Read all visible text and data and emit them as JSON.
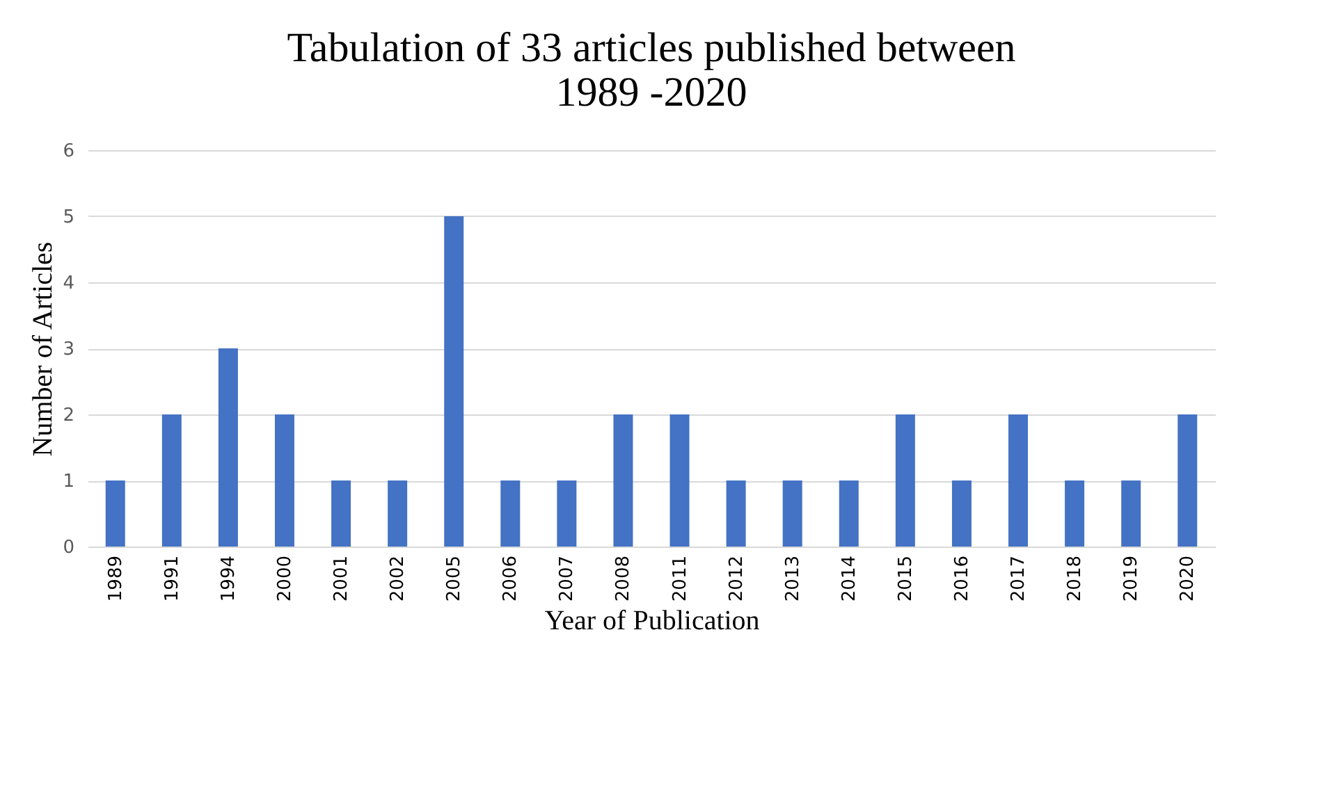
{
  "chart_data": {
    "type": "bar",
    "title": "Tabulation of 33 articles published between 1989 -2020",
    "xlabel": "Year of Publication",
    "ylabel": "Number of Articles",
    "categories": [
      "1989",
      "1991",
      "1994",
      "2000",
      "2001",
      "2002",
      "2005",
      "2006",
      "2007",
      "2008",
      "2011",
      "2012",
      "2013",
      "2014",
      "2015",
      "2016",
      "2017",
      "2018",
      "2019",
      "2020"
    ],
    "values": [
      1,
      2,
      3,
      2,
      1,
      1,
      5,
      1,
      1,
      2,
      2,
      1,
      1,
      1,
      2,
      1,
      2,
      1,
      1,
      2
    ],
    "color": "#4472c4",
    "ylim": [
      0,
      6
    ],
    "yticks": [
      0,
      1,
      2,
      3,
      4,
      5,
      6
    ],
    "grid": "y"
  }
}
